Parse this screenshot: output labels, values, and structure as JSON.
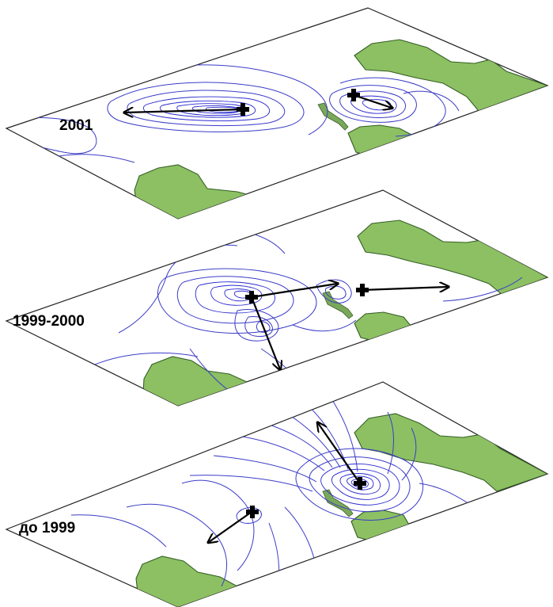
{
  "layers": [
    {
      "label": "2001"
    },
    {
      "label": "1999-2000"
    },
    {
      "label": "до 1999"
    }
  ],
  "colors": {
    "land": "#8cc063",
    "contour": "#3c3cc8",
    "arrow": "#000000",
    "plane": "#ffffff"
  }
}
